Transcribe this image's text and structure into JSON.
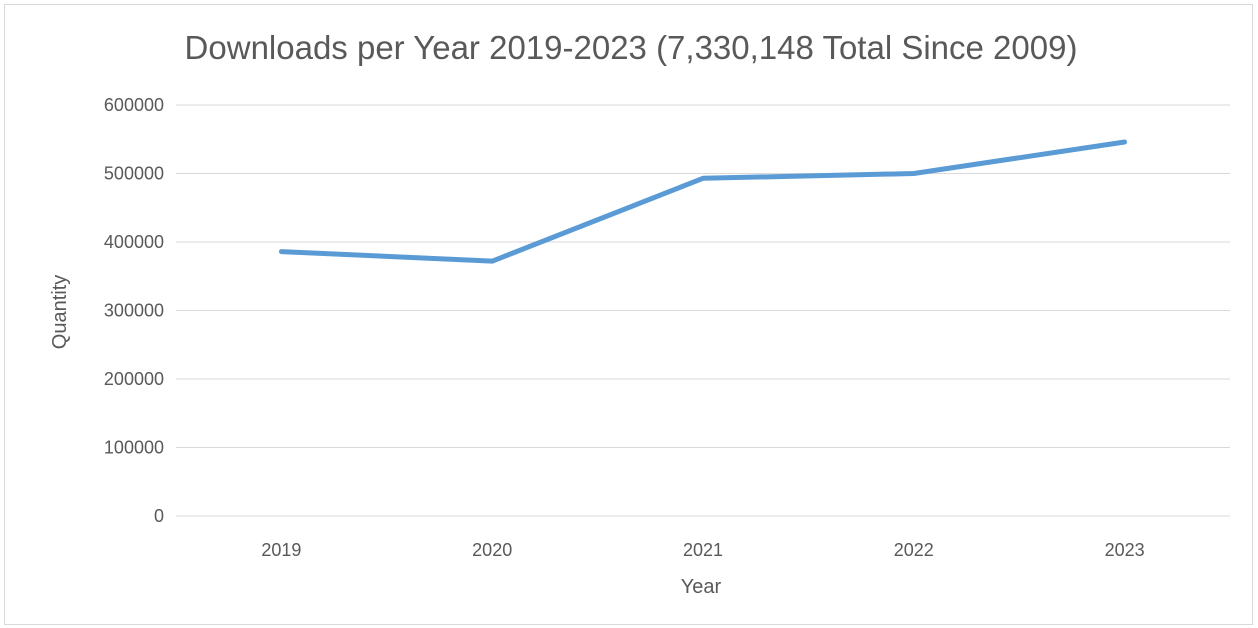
{
  "chart_data": {
    "type": "line",
    "title": "Downloads per Year 2019-2023 (7,330,148 Total Since 2009)",
    "xlabel": "Year",
    "ylabel": "Quantity",
    "categories": [
      "2019",
      "2020",
      "2021",
      "2022",
      "2023"
    ],
    "series": [
      {
        "values": [
          386000,
          372000,
          493000,
          500000,
          546000
        ],
        "color": "#5b9bd5"
      }
    ],
    "ylim": [
      0,
      600000
    ],
    "yticks": [
      0,
      100000,
      200000,
      300000,
      400000,
      500000,
      600000
    ],
    "ytick_labels": [
      "0",
      "100000",
      "200000",
      "300000",
      "400000",
      "500000",
      "600000"
    ],
    "grid": true,
    "gridline_color": "#d9d9d9",
    "legend": "none"
  }
}
